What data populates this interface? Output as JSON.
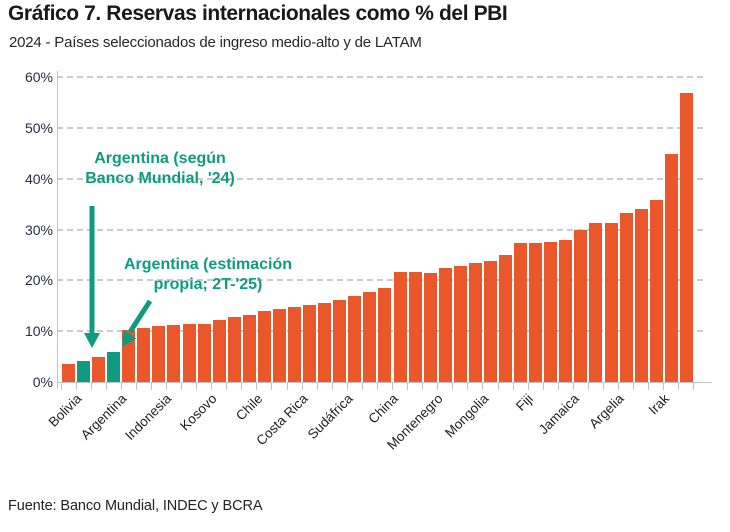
{
  "header": {
    "title": "Gráfico 7. Reservas internacionales como % del PBI",
    "subtitle": "2024 - Países seleccionados de ingreso medio-alto y de LATAM"
  },
  "footer": {
    "source": "Fuente: Banco Mundial, INDEC y BCRA"
  },
  "colors": {
    "orange": "#e9572b",
    "teal": "#0e9b7f",
    "title_text": "#18181f",
    "axis_text": "#2b2b44",
    "grid": "#cbcbcb"
  },
  "annotations": [
    {
      "lines": [
        "Argentina (según",
        "Banco Mundial, '24)"
      ],
      "target_bar_index": 1
    },
    {
      "lines": [
        "Argentina (estimación",
        "propia; 2T-'25)"
      ],
      "target_bar_index": 3
    }
  ],
  "chart_data": {
    "type": "bar",
    "title": "Gráfico 7. Reservas internacionales como % del PBI",
    "subtitle": "2024 - Países seleccionados de ingreso medio-alto y de LATAM",
    "xlabel": "",
    "ylabel": "",
    "ylim": [
      0,
      60
    ],
    "yticks": [
      0,
      10,
      20,
      30,
      40,
      50,
      60
    ],
    "ytick_format": "percent",
    "grid": "dashed-horizontal",
    "legend": "none",
    "bars": [
      {
        "label": "Bolivia",
        "value": 3.5,
        "color": "orange"
      },
      {
        "label": "",
        "value": 4.1,
        "color": "teal"
      },
      {
        "label": "",
        "value": 5.0,
        "color": "orange"
      },
      {
        "label": "Argentina",
        "value": 6.0,
        "color": "teal"
      },
      {
        "label": "",
        "value": 10.2,
        "color": "orange"
      },
      {
        "label": "",
        "value": 10.6,
        "color": "orange"
      },
      {
        "label": "Indonesia",
        "value": 11.0,
        "color": "orange"
      },
      {
        "label": "",
        "value": 11.2,
        "color": "orange"
      },
      {
        "label": "",
        "value": 11.4,
        "color": "orange"
      },
      {
        "label": "Kosovo",
        "value": 11.5,
        "color": "orange"
      },
      {
        "label": "",
        "value": 12.1,
        "color": "orange"
      },
      {
        "label": "",
        "value": 12.8,
        "color": "orange"
      },
      {
        "label": "Chile",
        "value": 13.1,
        "color": "orange"
      },
      {
        "label": "",
        "value": 14.0,
        "color": "orange"
      },
      {
        "label": "",
        "value": 14.4,
        "color": "orange"
      },
      {
        "label": "Costa Rica",
        "value": 14.7,
        "color": "orange"
      },
      {
        "label": "",
        "value": 15.1,
        "color": "orange"
      },
      {
        "label": "",
        "value": 15.6,
        "color": "orange"
      },
      {
        "label": "Sudáfrica",
        "value": 16.1,
        "color": "orange"
      },
      {
        "label": "",
        "value": 16.9,
        "color": "orange"
      },
      {
        "label": "",
        "value": 17.7,
        "color": "orange"
      },
      {
        "label": "China",
        "value": 18.5,
        "color": "orange"
      },
      {
        "label": "",
        "value": 21.6,
        "color": "orange"
      },
      {
        "label": "",
        "value": 21.6,
        "color": "orange"
      },
      {
        "label": "Montenegro",
        "value": 21.5,
        "color": "orange"
      },
      {
        "label": "",
        "value": 22.4,
        "color": "orange"
      },
      {
        "label": "",
        "value": 22.8,
        "color": "orange"
      },
      {
        "label": "Mongolia",
        "value": 23.5,
        "color": "orange"
      },
      {
        "label": "",
        "value": 23.9,
        "color": "orange"
      },
      {
        "label": "",
        "value": 24.9,
        "color": "orange"
      },
      {
        "label": "Fiji",
        "value": 27.3,
        "color": "orange"
      },
      {
        "label": "",
        "value": 27.3,
        "color": "orange"
      },
      {
        "label": "",
        "value": 27.5,
        "color": "orange"
      },
      {
        "label": "Jamaica",
        "value": 28.0,
        "color": "orange"
      },
      {
        "label": "",
        "value": 30.0,
        "color": "orange"
      },
      {
        "label": "",
        "value": 31.2,
        "color": "orange"
      },
      {
        "label": "Argelia",
        "value": 31.2,
        "color": "orange"
      },
      {
        "label": "",
        "value": 33.2,
        "color": "orange"
      },
      {
        "label": "",
        "value": 34.1,
        "color": "orange"
      },
      {
        "label": "Irak",
        "value": 35.9,
        "color": "orange"
      },
      {
        "label": "",
        "value": 44.9,
        "color": "orange"
      },
      {
        "label": "",
        "value": 56.8,
        "color": "orange"
      }
    ]
  }
}
